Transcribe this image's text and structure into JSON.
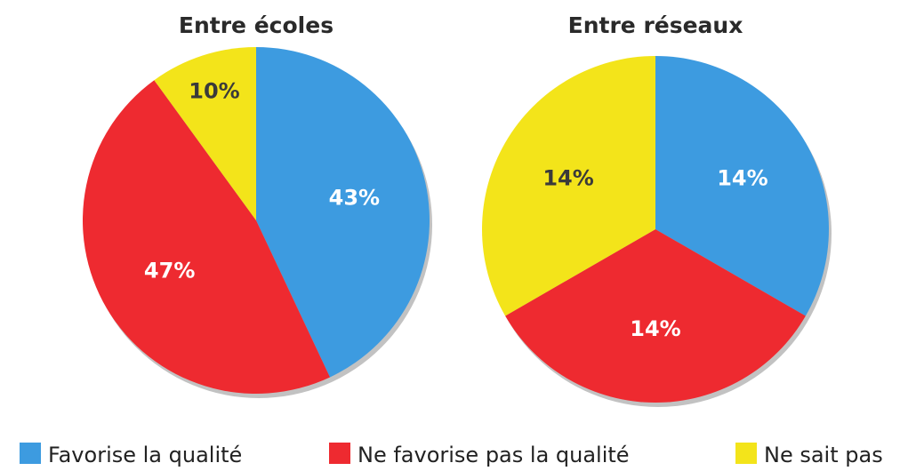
{
  "legend": {
    "labels": [
      "Favorise la qualité",
      "Ne favorise pas la qualité",
      "Ne sait pas"
    ],
    "colors": [
      "#3d9be0",
      "#ee2a30",
      "#f3e41a"
    ]
  },
  "chart_data": [
    {
      "type": "pie",
      "title": "Entre écoles",
      "values": [
        43,
        47,
        10
      ],
      "value_labels": [
        "43%",
        "47%",
        "10%"
      ],
      "label_colors": [
        "#ffffff",
        "#ffffff",
        "#3a3a3a"
      ]
    },
    {
      "type": "pie",
      "title": "Entre réseaux",
      "values": [
        14,
        14,
        14
      ],
      "value_labels": [
        "14%",
        "14%",
        "14%"
      ],
      "label_colors": [
        "#ffffff",
        "#ffffff",
        "#3a3a3a"
      ]
    }
  ]
}
